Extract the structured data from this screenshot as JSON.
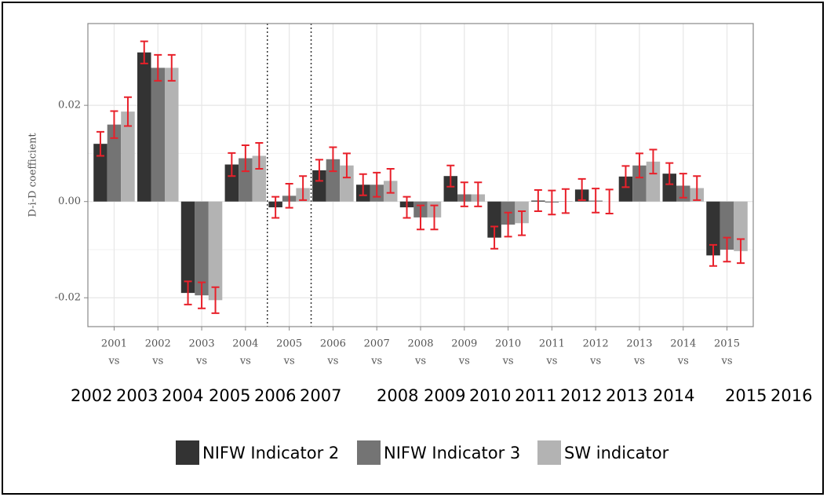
{
  "chart_data": {
    "type": "bar",
    "y_label": "D-i-D coefficient",
    "categories": [
      "2001",
      "2002",
      "2003",
      "2004",
      "2005",
      "2006",
      "2007",
      "2008",
      "2009",
      "2010",
      "2011",
      "2012",
      "2013",
      "2014",
      "2015"
    ],
    "x_sublabel": "vs",
    "bottom_labels": [
      "2002",
      "2003",
      "2004",
      "2005",
      "2006",
      "2007",
      "2008",
      "2009",
      "2010",
      "2011",
      "2012",
      "2013",
      "2014",
      "2015",
      "2016"
    ],
    "series": [
      {
        "name": "NIFW Indicator 2",
        "color": "#333333",
        "values": [
          0.012,
          0.031,
          -0.019,
          0.0077,
          -0.0012,
          0.0065,
          0.0035,
          -0.0012,
          0.0053,
          -0.0075,
          0.0002,
          0.0025,
          0.0052,
          0.0058,
          -0.0112
        ],
        "errors": [
          0.0025,
          0.0023,
          0.0024,
          0.0024,
          0.0022,
          0.0022,
          0.0022,
          0.0022,
          0.0022,
          0.0023,
          0.0022,
          0.0022,
          0.0022,
          0.0022,
          0.0022
        ]
      },
      {
        "name": "NIFW Indicator 3",
        "color": "#747474",
        "values": [
          0.016,
          0.0278,
          -0.0195,
          0.009,
          0.0012,
          0.0088,
          0.0035,
          -0.0033,
          0.0015,
          -0.0048,
          -0.0002,
          0.0002,
          0.0075,
          0.0033,
          -0.01
        ],
        "errors": [
          0.0028,
          0.0027,
          0.0027,
          0.0027,
          0.0025,
          0.0025,
          0.0025,
          0.0025,
          0.0025,
          0.0025,
          0.0025,
          0.0025,
          0.0025,
          0.0025,
          0.0025
        ]
      },
      {
        "name": "SW indicator",
        "color": "#b3b3b3",
        "values": [
          0.0187,
          0.0278,
          -0.0205,
          0.0095,
          0.0028,
          0.0075,
          0.0043,
          -0.0033,
          0.0015,
          -0.0045,
          0.0001,
          0,
          0.0083,
          0.0028,
          -0.0103
        ],
        "errors": [
          0.003,
          0.0027,
          0.0027,
          0.0027,
          0.0025,
          0.0025,
          0.0025,
          0.0025,
          0.0025,
          0.0025,
          0.0025,
          0.0025,
          0.0025,
          0.0025,
          0.0025
        ]
      }
    ],
    "error_color": "#e8202a",
    "ylim": [
      -0.026,
      0.037
    ],
    "yticks": [
      -0.02,
      {
        "value": 0,
        "label": "0.00"
      },
      0.02
    ],
    "grid": true
  }
}
